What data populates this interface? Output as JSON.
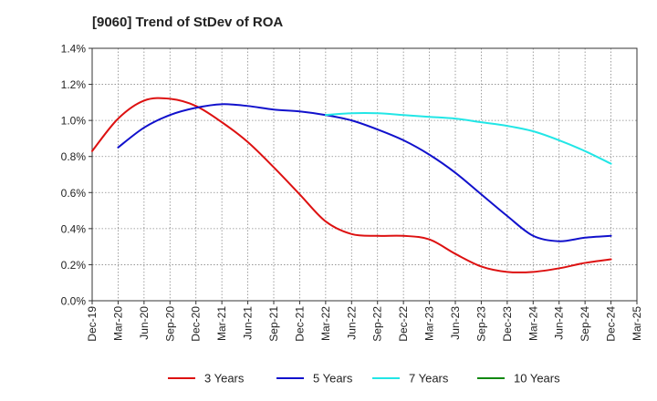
{
  "chart_data": {
    "type": "line",
    "title": "[9060]  Trend of StDev of ROA",
    "x_tick_labels": [
      "Dec-19",
      "Mar-20",
      "Jun-20",
      "Sep-20",
      "Dec-20",
      "Mar-21",
      "Jun-21",
      "Sep-21",
      "Dec-21",
      "Mar-22",
      "Jun-22",
      "Sep-22",
      "Dec-22",
      "Mar-23",
      "Jun-23",
      "Sep-23",
      "Dec-23",
      "Mar-24",
      "Jun-24",
      "Sep-24",
      "Dec-24",
      "Mar-25"
    ],
    "y_tick_labels": [
      "0.0%",
      "0.2%",
      "0.4%",
      "0.6%",
      "0.8%",
      "1.0%",
      "1.2%",
      "1.4%"
    ],
    "ylim": [
      0,
      1.4
    ],
    "y_unit": "%",
    "grid": true,
    "legend_position": "bottom",
    "series": [
      {
        "name": "3 Years",
        "color": "#dd1111",
        "x": [
          "Dec-19",
          "Mar-20",
          "Jun-20",
          "Sep-20",
          "Dec-20",
          "Mar-21",
          "Jun-21",
          "Sep-21",
          "Dec-21",
          "Mar-22",
          "Jun-22",
          "Sep-22",
          "Dec-22",
          "Mar-23",
          "Jun-23",
          "Sep-23",
          "Dec-23",
          "Mar-24",
          "Jun-24",
          "Sep-24",
          "Dec-24"
        ],
        "values": [
          0.83,
          1.01,
          1.11,
          1.12,
          1.08,
          0.99,
          0.88,
          0.74,
          0.59,
          0.44,
          0.37,
          0.36,
          0.36,
          0.34,
          0.26,
          0.19,
          0.16,
          0.16,
          0.18,
          0.21,
          0.23
        ]
      },
      {
        "name": "5 Years",
        "color": "#1111cc",
        "x": [
          "Mar-20",
          "Jun-20",
          "Sep-20",
          "Dec-20",
          "Mar-21",
          "Jun-21",
          "Sep-21",
          "Dec-21",
          "Mar-22",
          "Jun-22",
          "Sep-22",
          "Dec-22",
          "Mar-23",
          "Jun-23",
          "Sep-23",
          "Dec-23",
          "Mar-24",
          "Jun-24",
          "Sep-24",
          "Dec-24"
        ],
        "values": [
          0.85,
          0.96,
          1.03,
          1.07,
          1.09,
          1.08,
          1.06,
          1.05,
          1.03,
          1.0,
          0.95,
          0.89,
          0.81,
          0.71,
          0.59,
          0.47,
          0.36,
          0.33,
          0.35,
          0.36
        ]
      },
      {
        "name": "7 Years",
        "color": "#22e6e6",
        "x": [
          "Mar-22",
          "Jun-22",
          "Sep-22",
          "Dec-22",
          "Mar-23",
          "Jun-23",
          "Sep-23",
          "Dec-23",
          "Mar-24",
          "Jun-24",
          "Sep-24",
          "Dec-24"
        ],
        "values": [
          1.03,
          1.04,
          1.04,
          1.03,
          1.02,
          1.01,
          0.99,
          0.97,
          0.94,
          0.89,
          0.83,
          0.76
        ]
      },
      {
        "name": "10 Years",
        "color": "#118811",
        "x": [],
        "values": []
      }
    ]
  }
}
